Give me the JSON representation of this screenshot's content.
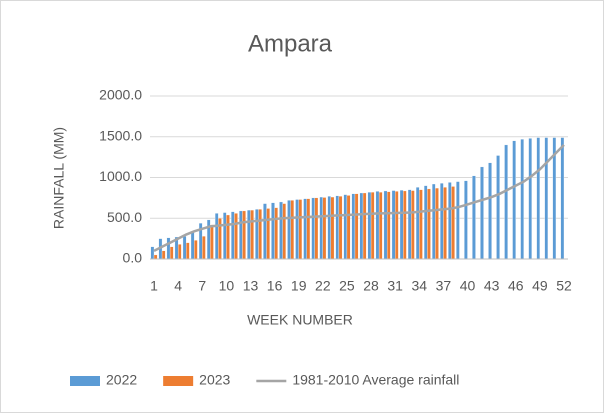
{
  "chart_data": {
    "type": "bar",
    "title": "Ampara",
    "x_label": "WEEK NUMBER",
    "y_label": "RAINFALL (MM)",
    "categories": [
      1,
      null,
      null,
      4,
      null,
      null,
      7,
      null,
      null,
      10,
      null,
      null,
      13,
      null,
      null,
      16,
      null,
      null,
      19,
      null,
      null,
      22,
      null,
      null,
      25,
      null,
      null,
      28,
      null,
      null,
      31,
      null,
      null,
      34,
      null,
      null,
      37,
      null,
      null,
      40,
      null,
      null,
      43,
      null,
      null,
      46,
      null,
      null,
      49,
      null,
      null,
      52
    ],
    "series": [
      {
        "name": "2022",
        "type": "bar",
        "color": "#5b9bd5",
        "values": [
          150,
          250,
          260,
          270,
          280,
          330,
          440,
          480,
          560,
          570,
          580,
          590,
          600,
          610,
          680,
          690,
          700,
          720,
          730,
          740,
          750,
          760,
          770,
          775,
          790,
          800,
          810,
          820,
          830,
          835,
          840,
          845,
          850,
          880,
          900,
          920,
          930,
          940,
          950,
          960,
          1020,
          1130,
          1180,
          1270,
          1400,
          1450,
          1470,
          1480,
          1490,
          1490,
          1490,
          1490
        ]
      },
      {
        "name": "2023",
        "type": "bar",
        "color": "#ed7d31",
        "values": [
          50,
          100,
          150,
          180,
          200,
          230,
          280,
          420,
          500,
          540,
          560,
          590,
          600,
          610,
          620,
          630,
          680,
          720,
          730,
          740,
          750,
          755,
          760,
          770,
          780,
          800,
          810,
          820,
          820,
          825,
          830,
          835,
          840,
          850,
          860,
          870,
          880,
          890,
          null,
          null,
          null,
          null,
          null,
          null,
          null,
          null,
          null,
          null,
          null,
          null,
          null,
          null
        ]
      },
      {
        "name": "1981-2010 Average rainfall",
        "type": "line",
        "color": "#a5a5a5",
        "values": [
          100,
          150,
          200,
          250,
          300,
          340,
          370,
          400,
          410,
          420,
          430,
          450,
          460,
          470,
          480,
          490,
          500,
          505,
          510,
          515,
          520,
          525,
          530,
          535,
          540,
          545,
          550,
          555,
          560,
          562,
          565,
          568,
          570,
          580,
          590,
          600,
          610,
          620,
          640,
          670,
          700,
          730,
          760,
          800,
          850,
          900,
          950,
          1020,
          1100,
          1200,
          1300,
          1400
        ]
      }
    ],
    "ylim": [
      0,
      2000
    ],
    "yticks": [
      {
        "value": 0,
        "label": "0.0"
      },
      {
        "value": 500,
        "label": "500.0"
      },
      {
        "value": 1000,
        "label": "1000.0"
      },
      {
        "value": 1500,
        "label": "1500.0"
      },
      {
        "value": 2000,
        "label": "2000.0"
      }
    ],
    "grid": true,
    "legend": "bottom"
  }
}
